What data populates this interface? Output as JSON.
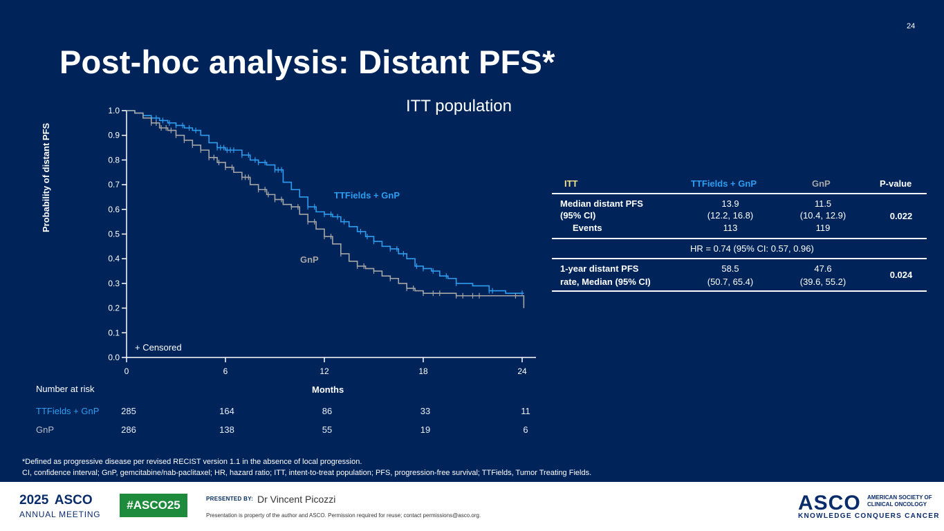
{
  "slide": {
    "page_number": "24",
    "title": "Post-hoc analysis: Distant PFS*",
    "subtitle": "ITT population"
  },
  "chart_data": {
    "type": "line",
    "title": "ITT population",
    "xlabel": "Months",
    "ylabel": "Probability of distant PFS",
    "xlim": [
      0,
      24.5
    ],
    "ylim": [
      0,
      1.0
    ],
    "x_ticks": [
      "0",
      "6",
      "12",
      "18",
      "24"
    ],
    "y_ticks": [
      "0.0",
      "0.1",
      "0.2",
      "0.3",
      "0.4",
      "0.5",
      "0.6",
      "0.7",
      "0.8",
      "0.9",
      "1.0"
    ],
    "censored_legend": "+ Censored",
    "series": [
      {
        "name": "TTFields + GnP",
        "color": "#2e9df0",
        "x": [
          0,
          0.5,
          1,
          1.5,
          2,
          2.5,
          3,
          3.5,
          4,
          4.5,
          5,
          5.5,
          6,
          7,
          7.5,
          8,
          8.5,
          9,
          9.5,
          10,
          10.5,
          11,
          11.5,
          12,
          12.5,
          13,
          13.5,
          14,
          14.5,
          15,
          15.5,
          16,
          16.5,
          17,
          17.5,
          18,
          18.5,
          19,
          19.5,
          20,
          21,
          22,
          23,
          24,
          25
        ],
        "y": [
          1.0,
          0.99,
          0.98,
          0.97,
          0.96,
          0.95,
          0.94,
          0.93,
          0.92,
          0.9,
          0.87,
          0.85,
          0.84,
          0.82,
          0.8,
          0.79,
          0.78,
          0.76,
          0.71,
          0.68,
          0.65,
          0.61,
          0.59,
          0.58,
          0.57,
          0.55,
          0.53,
          0.51,
          0.49,
          0.47,
          0.45,
          0.44,
          0.42,
          0.4,
          0.37,
          0.36,
          0.35,
          0.33,
          0.32,
          0.3,
          0.29,
          0.27,
          0.26,
          0.26,
          0.26
        ],
        "censored_x": [
          1.8,
          2.2,
          2.6,
          3.0,
          3.4,
          3.8,
          4.2,
          5.5,
          5.7,
          5.9,
          6.1,
          6.3,
          6.5,
          7.0,
          7.4,
          7.8,
          8.0,
          8.4,
          9.0,
          9.2,
          9.4,
          11.0,
          11.4,
          12.0,
          12.4,
          12.8,
          13.2,
          14.2,
          14.6,
          15.0,
          16.0,
          16.4,
          16.8,
          17.6,
          18.0,
          18.6,
          19.4,
          20.0,
          22.0,
          22.2,
          24.0
        ],
        "risk": [
          "285",
          "164",
          "86",
          "33",
          "11"
        ]
      },
      {
        "name": "GnP",
        "color": "#a6a6a6",
        "x": [
          0,
          0.5,
          1,
          1.5,
          2,
          2.5,
          3,
          3.5,
          4,
          4.5,
          5,
          5.5,
          6,
          6.5,
          7,
          7.5,
          8,
          8.5,
          9,
          9.5,
          10,
          10.5,
          11,
          11.5,
          12,
          12.5,
          13,
          13.5,
          14,
          14.5,
          15,
          15.5,
          16,
          16.5,
          17,
          17.5,
          18,
          18.5,
          19,
          19.5,
          20,
          21,
          22,
          23,
          24,
          24.1,
          25
        ],
        "y": [
          1.0,
          0.99,
          0.97,
          0.95,
          0.93,
          0.92,
          0.9,
          0.88,
          0.86,
          0.84,
          0.81,
          0.79,
          0.77,
          0.75,
          0.73,
          0.7,
          0.68,
          0.66,
          0.64,
          0.62,
          0.61,
          0.58,
          0.55,
          0.52,
          0.49,
          0.46,
          0.42,
          0.39,
          0.37,
          0.36,
          0.35,
          0.33,
          0.32,
          0.3,
          0.28,
          0.27,
          0.26,
          0.26,
          0.26,
          0.26,
          0.25,
          0.25,
          0.25,
          0.25,
          0.25,
          0.2,
          0.2
        ],
        "censored_x": [
          1.5,
          1.8,
          2.1,
          2.4,
          2.7,
          3.0,
          3.5,
          4.0,
          4.5,
          5.0,
          5.3,
          5.6,
          6.0,
          6.4,
          7.0,
          7.2,
          7.4,
          8.0,
          8.4,
          8.6,
          9.0,
          9.4,
          10.0,
          10.4,
          11.0,
          11.4,
          12.0,
          12.4,
          13.0,
          14.0,
          14.4,
          15.0,
          16.0,
          17.0,
          17.4,
          18.0,
          18.6,
          19.0,
          20.0,
          20.4,
          21.0,
          21.4,
          23.6
        ],
        "risk": [
          "286",
          "138",
          "55",
          "19",
          "6"
        ]
      }
    ],
    "annotations": [
      "TTFields + GnP",
      "GnP"
    ]
  },
  "risk_table": {
    "title": "Number at risk",
    "rows": [
      {
        "name": "TTFields + GnP",
        "values": [
          "285",
          "164",
          "86",
          "33",
          "11"
        ]
      },
      {
        "name": "GnP",
        "values": [
          "286",
          "138",
          "55",
          "19",
          "6"
        ]
      }
    ]
  },
  "summary_table": {
    "headers": [
      "ITT",
      "TTFields + GnP",
      "GnP",
      "P-value"
    ],
    "row1": {
      "label1": "Median distant PFS",
      "label2": "(95% CI)",
      "label3": "Events",
      "tt_median": "13.9",
      "tt_ci": "(12.2, 16.8)",
      "tt_events": "113",
      "gnp_median": "11.5",
      "gnp_ci": "(10.4, 12.9)",
      "gnp_events": "119",
      "p": "0.022"
    },
    "hr": "HR = 0.74 (95% CI: 0.57, 0.96)",
    "row2": {
      "label1": "1-year distant PFS",
      "label2": "rate, Median (95% CI)",
      "tt_median": "58.5",
      "tt_ci": "(50.7, 65.4)",
      "gnp_median": "47.6",
      "gnp_ci": "(39.6, 55.2)",
      "p": "0.024"
    }
  },
  "footnotes": {
    "line1": "*Defined as progressive disease per revised RECIST version 1.1 in the absence of local progression.",
    "line2": "CI, confidence interval; GnP, gemcitabine/nab-paclitaxel; HR, hazard ratio; ITT, intent-to-treat population; PFS, progression-free survival; TTFields, Tumor Treating Fields."
  },
  "footer": {
    "year": "2025",
    "asco": "ASCO",
    "annual_meeting": "ANNUAL MEETING",
    "hashtag": "#ASCO25",
    "presented_by": "PRESENTED BY:",
    "presenter": "Dr Vincent Picozzi",
    "disclaimer": "Presentation is property of the author and ASCO. Permission required for reuse; contact permissions@asco.org.",
    "society": "AMERICAN SOCIETY OF CLINICAL ONCOLOGY",
    "tagline": "KNOWLEDGE CONQUERS CANCER"
  },
  "colors": {
    "background": "#00245a",
    "tt_series": "#2e9df0",
    "gnp_series": "#a6a6a6",
    "hashtag_bg": "#1d8a3c"
  }
}
